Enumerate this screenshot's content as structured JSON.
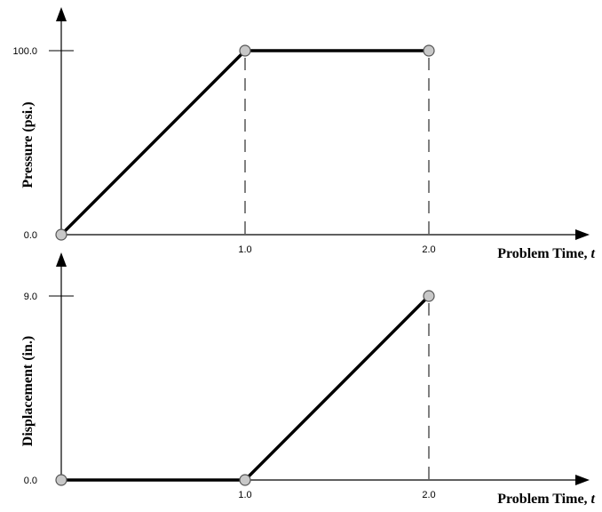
{
  "chart_data": [
    {
      "type": "line",
      "title": "",
      "xlabel": "Problem Time, t",
      "xlabel_text": "Problem Time, ",
      "xlabel_var": "t",
      "ylabel": "Pressure  (psi.)",
      "x_ticks": [
        "1.0",
        "2.0"
      ],
      "y_ticks": [
        "0.0",
        "100.0"
      ],
      "xlim": [
        0,
        2.0
      ],
      "ylim": [
        0,
        100.0
      ],
      "series": [
        {
          "x": [
            0.0,
            1.0,
            2.0
          ],
          "y": [
            0.0,
            100.0,
            100.0
          ]
        }
      ],
      "dashed_guides_at_x": [
        1.0,
        2.0
      ]
    },
    {
      "type": "line",
      "title": "",
      "xlabel": "Problem Time, t",
      "xlabel_text": "Problem Time, ",
      "xlabel_var": "t",
      "ylabel": "Displacement (in.)",
      "x_ticks": [
        "1.0",
        "2.0"
      ],
      "y_ticks": [
        "0.0",
        "9.0"
      ],
      "xlim": [
        0,
        2.0
      ],
      "ylim": [
        0,
        9.0
      ],
      "series": [
        {
          "x": [
            0.0,
            1.0,
            2.0
          ],
          "y": [
            0.0,
            0.0,
            9.0
          ]
        }
      ],
      "dashed_guides_at_x": [
        2.0
      ]
    }
  ],
  "colors": {
    "line": "#000000",
    "marker_fill": "#c8c8c8",
    "marker_stroke": "#555555"
  }
}
